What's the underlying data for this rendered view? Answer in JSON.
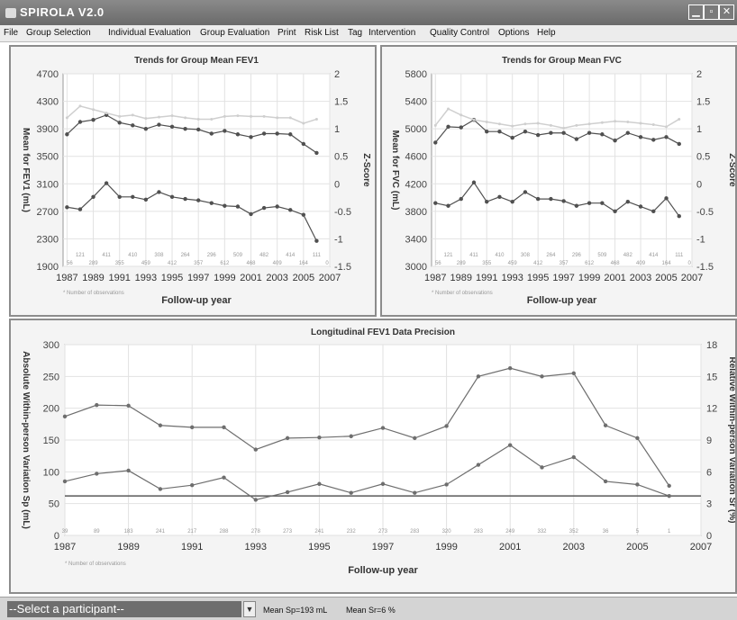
{
  "window": {
    "title": "SPIROLA V2.0"
  },
  "menu": [
    "File",
    "Group Selection",
    "Individual Evaluation",
    "Group Evaluation",
    "Print",
    "Risk List",
    "Tag",
    "Intervention",
    "Quality Control",
    "Options",
    "Help"
  ],
  "footnote": "* Number of observations",
  "status": {
    "select_value": "--Select a participant--",
    "mean_sp": "Mean Sp=193 mL",
    "mean_sr": "Mean Sr=6 %"
  },
  "chart_data": [
    {
      "type": "line",
      "title": "Trends for Group Mean FEV1",
      "xlabel": "Follow-up year",
      "ylabel": "Mean for FEV1 (mL)",
      "y2label": "Z-Score",
      "xlim": [
        1986.7,
        2007
      ],
      "ylim": [
        1900,
        4700
      ],
      "y2lim": [
        -1.5,
        2
      ],
      "x_ticks": [
        1987,
        1989,
        1991,
        1993,
        1995,
        1997,
        1999,
        2001,
        2003,
        2005,
        2007
      ],
      "y_ticks": [
        1900,
        2300,
        2700,
        3100,
        3500,
        3900,
        4300,
        4700
      ],
      "y2_ticks": [
        -1.5,
        -1,
        -0.5,
        0,
        0.5,
        1,
        1.5,
        2
      ],
      "grid": true,
      "x": [
        1987,
        1988,
        1989,
        1990,
        1991,
        1992,
        1993,
        1994,
        1995,
        1996,
        1997,
        1998,
        1999,
        2000,
        2001,
        2002,
        2003,
        2004,
        2005,
        2006
      ],
      "series": [
        {
          "role": "mean",
          "axis": "left",
          "color": "#505050",
          "values": [
            3820,
            4000,
            4030,
            4100,
            3990,
            3950,
            3900,
            3960,
            3930,
            3900,
            3890,
            3830,
            3870,
            3820,
            3780,
            3830,
            3830,
            3820,
            3680,
            3550
          ]
        },
        {
          "role": "zscore",
          "axis": "left",
          "color": "#505050",
          "values": [
            2760,
            2730,
            2910,
            3110,
            2910,
            2910,
            2870,
            2980,
            2910,
            2880,
            2860,
            2820,
            2780,
            2770,
            2660,
            2750,
            2770,
            2720,
            2650,
            2270
          ]
        },
        {
          "role": "reference",
          "axis": "left",
          "color": "#cfcfcf",
          "values": [
            4060,
            4230,
            4180,
            4130,
            4080,
            4100,
            4050,
            4070,
            4090,
            4060,
            4040,
            4040,
            4080,
            4090,
            4080,
            4080,
            4060,
            4060,
            3980,
            4040
          ]
        }
      ],
      "obs_top": [
        "121",
        "411",
        "410",
        "308",
        "264",
        "296",
        "509",
        "482",
        "414",
        "111"
      ],
      "obs_bottom": [
        "56",
        "289",
        "355",
        "459",
        "412",
        "357",
        "612",
        "468",
        "409",
        "164",
        "0"
      ]
    },
    {
      "type": "line",
      "title": "Trends for Group Mean FVC",
      "xlabel": "Follow-up year",
      "ylabel": "Mean for FVC (mL)",
      "y2label": "Z-Score",
      "xlim": [
        1986.7,
        2007
      ],
      "ylim": [
        3000,
        5800
      ],
      "y2lim": [
        -1.5,
        2
      ],
      "x_ticks": [
        1987,
        1989,
        1991,
        1993,
        1995,
        1997,
        1999,
        2001,
        2003,
        2005,
        2007
      ],
      "y_ticks": [
        3000,
        3400,
        3800,
        4200,
        4600,
        5000,
        5400,
        5800
      ],
      "y2_ticks": [
        -1.5,
        -1,
        -0.5,
        0,
        0.5,
        1,
        1.5,
        2
      ],
      "grid": true,
      "x": [
        1987,
        1988,
        1989,
        1990,
        1991,
        1992,
        1993,
        1994,
        1995,
        1996,
        1997,
        1998,
        1999,
        2000,
        2001,
        2002,
        2003,
        2004,
        2005,
        2006
      ],
      "series": [
        {
          "role": "mean",
          "axis": "left",
          "color": "#505050",
          "values": [
            4800,
            5030,
            5020,
            5130,
            4960,
            4960,
            4870,
            4960,
            4910,
            4940,
            4940,
            4850,
            4940,
            4920,
            4830,
            4940,
            4880,
            4840,
            4880,
            4780
          ]
        },
        {
          "role": "zscore",
          "axis": "left",
          "color": "#505050",
          "values": [
            3920,
            3880,
            3980,
            4220,
            3940,
            4010,
            3940,
            4080,
            3980,
            3980,
            3950,
            3880,
            3920,
            3920,
            3800,
            3940,
            3870,
            3800,
            3990,
            3730
          ]
        },
        {
          "role": "reference",
          "axis": "left",
          "color": "#cfcfcf",
          "values": [
            5050,
            5290,
            5200,
            5130,
            5100,
            5070,
            5040,
            5070,
            5080,
            5050,
            5010,
            5050,
            5070,
            5090,
            5110,
            5100,
            5080,
            5060,
            5030,
            5140
          ]
        }
      ],
      "obs_top": [
        "121",
        "411",
        "410",
        "308",
        "264",
        "296",
        "509",
        "482",
        "414",
        "111"
      ],
      "obs_bottom": [
        "56",
        "289",
        "355",
        "459",
        "412",
        "357",
        "612",
        "468",
        "409",
        "164",
        "0"
      ]
    },
    {
      "type": "line",
      "title": "Longitudinal FEV1 Data Precision",
      "xlabel": "Follow-up year",
      "ylabel": "Absolute Within-person Variation Sp (mL)",
      "y2label": "Relative Within-person Variation Sr (%)",
      "xlim": [
        1987,
        2007
      ],
      "ylim": [
        0,
        300
      ],
      "y2lim": [
        0,
        18
      ],
      "x_ticks": [
        1987,
        1989,
        1991,
        1993,
        1995,
        1997,
        1999,
        2001,
        2003,
        2005,
        2007
      ],
      "y_ticks": [
        0,
        50,
        100,
        150,
        200,
        250,
        300
      ],
      "y2_ticks": [
        0,
        3,
        6,
        9,
        12,
        15,
        18
      ],
      "grid": true,
      "threshold": 62,
      "x": [
        1987,
        1988,
        1989,
        1990,
        1991,
        1992,
        1993,
        1994,
        1995,
        1996,
        1997,
        1998,
        1999,
        2000,
        2001,
        2002,
        2003,
        2004,
        2005,
        2006
      ],
      "series": [
        {
          "role": "sp",
          "axis": "left",
          "color": "#6e6e6e",
          "values": [
            187,
            205,
            204,
            173,
            170,
            170,
            135,
            153,
            154,
            156,
            169,
            153,
            172,
            250,
            263,
            250,
            255,
            173,
            153,
            78
          ]
        },
        {
          "role": "sr",
          "axis": "left",
          "color": "#6e6e6e",
          "values": [
            85,
            97,
            102,
            73,
            79,
            91,
            56,
            68,
            81,
            67,
            81,
            67,
            80,
            111,
            142,
            107,
            123,
            85,
            80,
            62
          ]
        }
      ],
      "obs": [
        "39",
        "89",
        "183",
        "241",
        "217",
        "288",
        "278",
        "273",
        "241",
        "232",
        "273",
        "283",
        "320",
        "283",
        "249",
        "332",
        "352",
        "36",
        "5",
        "1"
      ]
    }
  ]
}
